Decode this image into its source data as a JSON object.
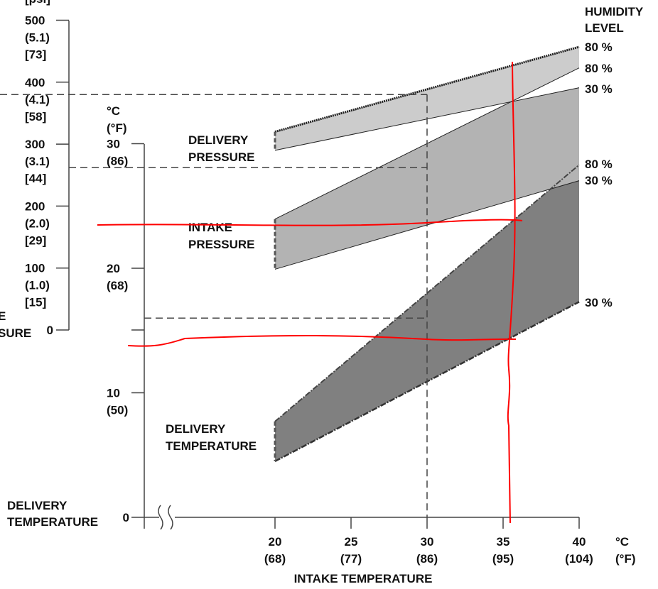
{
  "chart_data": {
    "type": "area",
    "xlabel": "INTAKE TEMPERATURE",
    "x_unit": [
      "°C",
      "(°F)"
    ],
    "x_ticks": [
      {
        "c": 20,
        "f": "(68)"
      },
      {
        "c": 25,
        "f": "(77)"
      },
      {
        "c": 30,
        "f": "(86)"
      },
      {
        "c": 35,
        "f": "(95)"
      },
      {
        "c": 40,
        "f": "(104)"
      }
    ],
    "xlim": [
      20,
      40
    ],
    "pressure_axis": {
      "unit_top": "[psi]",
      "ticks": [
        {
          "v": 500,
          "a": "(5.1)",
          "b": "[73]"
        },
        {
          "v": 400,
          "a": "(4.1)",
          "b": "[58]"
        },
        {
          "v": 300,
          "a": "(3.1)",
          "b": "[44]"
        },
        {
          "v": 200,
          "a": "(2.0)",
          "b": "[29]"
        },
        {
          "v": 100,
          "a": "(1.0)",
          "b": "[15]"
        },
        {
          "v": 0,
          "a": "",
          "b": ""
        }
      ],
      "label_fragments": [
        "E",
        "SURE"
      ]
    },
    "temperature_axis": {
      "unit": [
        "°C",
        "(°F)"
      ],
      "ticks": [
        {
          "v": 30,
          "f": "(86)"
        },
        {
          "v": 20,
          "f": "(68)"
        },
        {
          "v": 10,
          "f": "(50)"
        },
        {
          "v": 0,
          "f": ""
        }
      ],
      "label": [
        "DELIVERY",
        "TEMPERATURE"
      ]
    },
    "legend_title": [
      "HUMIDITY",
      "LEVEL"
    ],
    "bands": [
      {
        "name": [
          "DELIVERY",
          "PRESSURE"
        ],
        "axis": "pressure",
        "color": "#cccccc",
        "upper": {
          "humidity": "80 %",
          "x": [
            20,
            40
          ],
          "y": [
            320,
            457
          ]
        },
        "lower": {
          "humidity": "30 %",
          "x": [
            20,
            40
          ],
          "y": [
            290,
            391
          ]
        }
      },
      {
        "name": [
          "INTAKE",
          "PRESSURE"
        ],
        "axis": "pressure",
        "color": "#b3b3b3",
        "upper": {
          "humidity": "80 %",
          "x": [
            20,
            40
          ],
          "y": [
            179,
            423
          ]
        },
        "lower": {
          "humidity": "30 %",
          "x": [
            20,
            40
          ],
          "y": [
            98,
            241
          ]
        }
      },
      {
        "name": [
          "DELIVERY",
          "TEMPERATURE"
        ],
        "axis": "temperature",
        "color": "#808080",
        "upper": {
          "humidity": "80 %",
          "x": [
            20,
            40
          ],
          "y": [
            7.7,
            28.3
          ]
        },
        "lower": {
          "humidity": "30 %",
          "x": [
            20,
            40
          ],
          "y": [
            4.5,
            17.3
          ]
        }
      }
    ],
    "reference_lines": {
      "intake_temp": 30,
      "delivery_pressure": 380,
      "intake_pressure": 262,
      "delivery_temp": 16
    },
    "annotations_color": "#ff0000"
  }
}
